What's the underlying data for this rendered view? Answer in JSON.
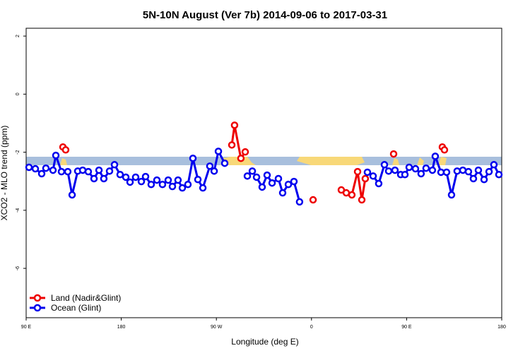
{
  "chart_data": {
    "type": "line",
    "title": "5N-10N August (Ver 7b)   2014-09-06 to 2017-03-31",
    "xlabel": "Longitude (deg E)",
    "ylabel": "XCO2 - MLO trend (ppm)",
    "xlim": [
      90,
      540
    ],
    "ylim": [
      -7.7,
      2.27
    ],
    "xticks": [
      {
        "value": 90,
        "label": "90 E"
      },
      {
        "value": 180,
        "label": "180"
      },
      {
        "value": 270,
        "label": "90 W"
      },
      {
        "value": 360,
        "label": "0"
      },
      {
        "value": 450,
        "label": "90 E"
      },
      {
        "value": 540,
        "label": "180"
      }
    ],
    "yticks": [
      2,
      0,
      -2,
      -4,
      -6
    ],
    "legend": "bottom-left",
    "series": [
      {
        "name": "Land (Nadir&Glint)",
        "color": "#ee0000",
        "x": [
          124.8,
          127.4,
          null,
          284.6,
          287.2,
          293.2,
          297.3,
          null,
          361.5,
          null,
          388.2,
          392.9,
          398.2,
          403.6,
          407.6,
          410.9,
          null,
          437.7,
          null,
          483.8,
          485.8
        ],
        "values": [
          -1.82,
          -1.92,
          null,
          -1.75,
          -1.07,
          -2.21,
          -1.99,
          null,
          -3.64,
          null,
          -3.3,
          -3.4,
          -3.47,
          -2.67,
          -3.64,
          -2.91,
          null,
          -2.06,
          null,
          -1.82,
          -1.92
        ]
      },
      {
        "name": "Ocean (Glint)",
        "color": "#0000ee",
        "x": [
          92.7,
          98.7,
          104.7,
          108.7,
          115.4,
          118.1,
          123.4,
          129.4,
          133.5,
          138.8,
          143.5,
          148.8,
          154.2,
          158.9,
          163.5,
          168.9,
          173.6,
          178.9,
          184.3,
          188.3,
          193.6,
          199.0,
          203.0,
          208.3,
          213.7,
          219.0,
          224.4,
          228.4,
          233.7,
          237.8,
          243.1,
          247.8,
          252.5,
          257.2,
          263.8,
          267.9,
          271.9,
          277.9,
          null,
          299.3,
          304.0,
          308.0,
          313.3,
          318.0,
          322.7,
          328.7,
          332.7,
          338.1,
          343.4,
          348.7,
          null,
          412.9,
          418.3,
          423.6,
          429.0,
          433.0,
          439.0,
          444.4,
          448.4,
          452.4,
          458.4,
          463.7,
          468.4,
          474.4,
          477.1,
          482.5,
          487.8,
          492.5,
          497.8,
          503.2,
          508.5,
          513.2,
          517.9,
          523.3,
          528.0,
          532.6,
          537.3
        ],
        "values": [
          -2.52,
          -2.57,
          -2.74,
          -2.55,
          -2.62,
          -2.11,
          -2.67,
          -2.67,
          -3.47,
          -2.65,
          -2.62,
          -2.67,
          -2.91,
          -2.62,
          -2.91,
          -2.65,
          -2.43,
          -2.77,
          -2.86,
          -3.03,
          -2.86,
          -3.01,
          -2.84,
          -3.11,
          -2.96,
          -3.11,
          -2.96,
          -3.18,
          -2.96,
          -3.23,
          -3.11,
          -2.21,
          -2.94,
          -3.23,
          -2.48,
          -2.65,
          -1.97,
          -2.38,
          null,
          -2.82,
          -2.65,
          -2.86,
          -3.2,
          -2.79,
          -3.06,
          -2.91,
          -3.4,
          -3.11,
          -3.01,
          -3.71,
          null,
          -2.69,
          -2.82,
          -3.08,
          -2.43,
          -2.65,
          -2.62,
          -2.77,
          -2.77,
          -2.52,
          -2.57,
          -2.74,
          -2.55,
          -2.62,
          -2.14,
          -2.69,
          -2.69,
          -3.47,
          -2.65,
          -2.62,
          -2.67,
          -2.91,
          -2.62,
          -2.94,
          -2.67,
          -2.43,
          -2.77
        ]
      }
    ]
  }
}
